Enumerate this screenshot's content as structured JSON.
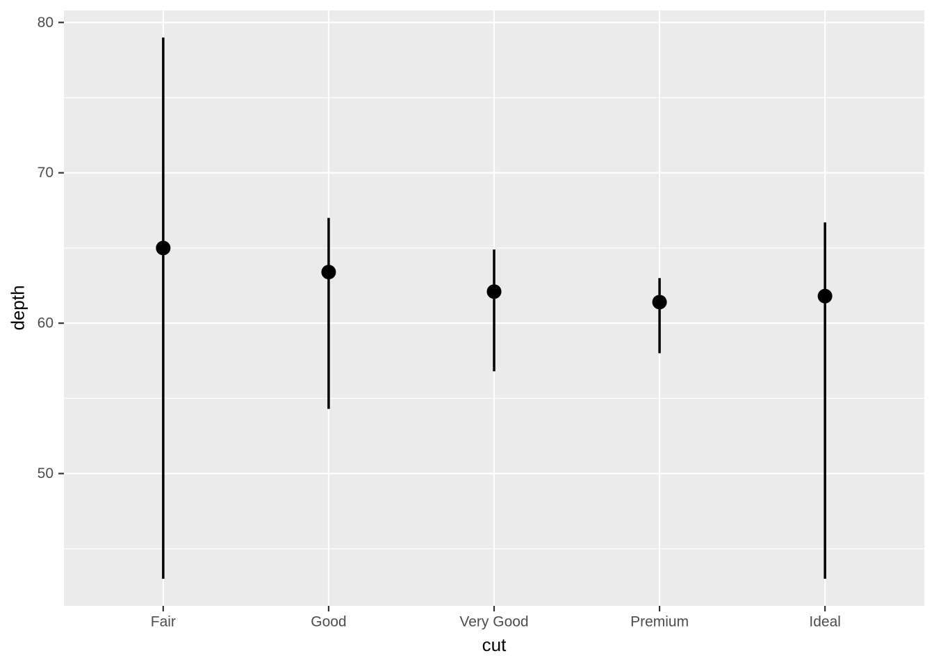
{
  "chart_data": {
    "type": "pointrange",
    "title": "",
    "xlabel": "cut",
    "ylabel": "depth",
    "categories": [
      "Fair",
      "Good",
      "Very Good",
      "Premium",
      "Ideal"
    ],
    "series": [
      {
        "category": "Fair",
        "min": 43.0,
        "median": 65.0,
        "max": 79.0
      },
      {
        "category": "Good",
        "min": 54.3,
        "median": 63.4,
        "max": 67.0
      },
      {
        "category": "Very Good",
        "min": 56.8,
        "median": 62.1,
        "max": 64.9
      },
      {
        "category": "Premium",
        "min": 58.0,
        "median": 61.4,
        "max": 63.0
      },
      {
        "category": "Ideal",
        "min": 43.0,
        "median": 61.8,
        "max": 66.7
      }
    ],
    "y_major_ticks": [
      50,
      60,
      70,
      80
    ],
    "y_minor_ticks": [
      45,
      55,
      65,
      75
    ],
    "ylim": [
      41.2,
      80.8
    ],
    "grid": "on",
    "legend_position": "none",
    "colors": {
      "panel_background": "#EBEBEB",
      "gridline": "#FFFFFF",
      "point_and_line": "#000000",
      "axis_text": "#4D4D4D",
      "tick_mark": "#333333",
      "axis_title": "#000000",
      "figure_background": "#FFFFFF"
    }
  }
}
